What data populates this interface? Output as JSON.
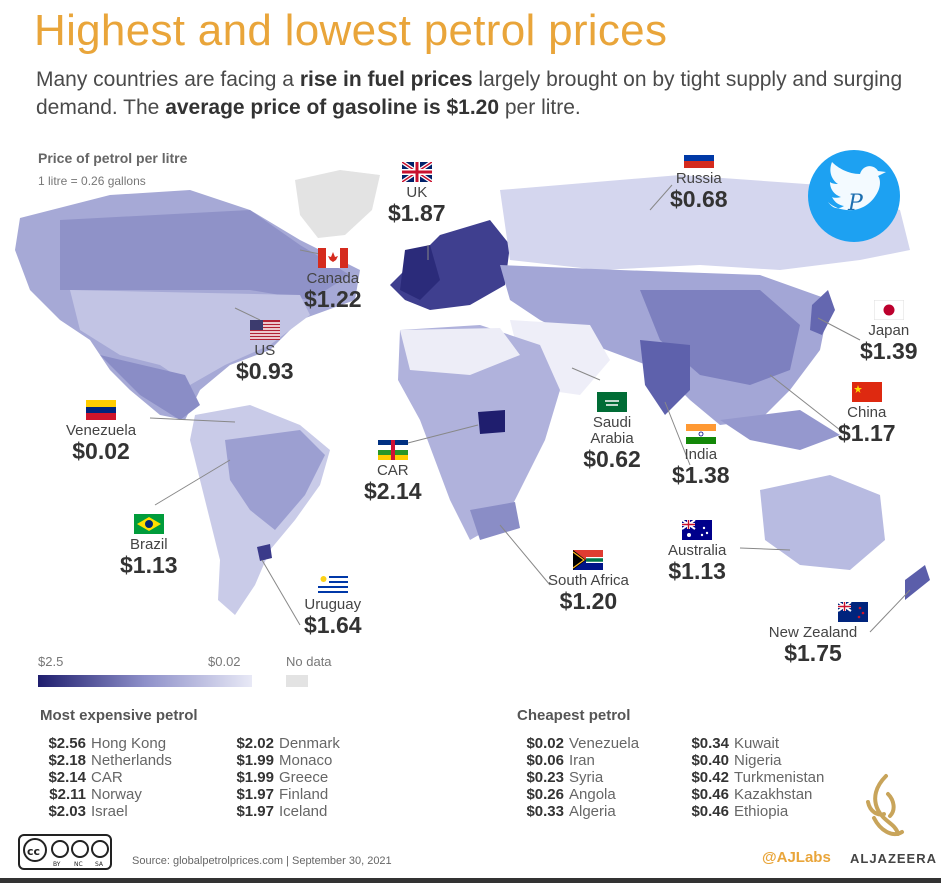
{
  "title": "Highest and lowest petrol prices",
  "subtitle": {
    "part1": "Many countries are facing a ",
    "bold1": "rise in fuel prices",
    "part2": " largely brought on by tight supply and surging demand. The ",
    "bold2": "average price of gasoline is $1.20",
    "part3": " per litre."
  },
  "map_header": {
    "title": "Price of petrol per litre",
    "note": "1 litre = 0.26 gallons"
  },
  "callouts": [
    {
      "country": "UK",
      "price": "$1.87"
    },
    {
      "country": "Russia",
      "price": "$0.68"
    },
    {
      "country": "Canada",
      "price": "$1.22"
    },
    {
      "country": "US",
      "price": "$0.93"
    },
    {
      "country": "Japan",
      "price": "$1.39"
    },
    {
      "country": "China",
      "price": "$1.17"
    },
    {
      "country": "Venezuela",
      "price": "$0.02"
    },
    {
      "country": "Saudi Arabia",
      "price": "$0.62"
    },
    {
      "country": "India",
      "price": "$1.38"
    },
    {
      "country": "CAR",
      "price": "$2.14"
    },
    {
      "country": "Brazil",
      "price": "$1.13"
    },
    {
      "country": "Australia",
      "price": "$1.13"
    },
    {
      "country": "South Africa",
      "price": "$1.20"
    },
    {
      "country": "Uruguay",
      "price": "$1.64"
    },
    {
      "country": "New Zealand",
      "price": "$1.75"
    }
  ],
  "legend": {
    "max_label": "$2.5",
    "min_label": "$0.02",
    "nodata_label": "No data",
    "high_color": "#1f1e6e",
    "low_color": "#e8e9f6",
    "nodata_color": "#e3e3e3"
  },
  "most_expensive": {
    "title": "Most expensive petrol",
    "items": [
      {
        "value": "$2.56",
        "country": "Hong Kong"
      },
      {
        "value": "$2.18",
        "country": "Netherlands"
      },
      {
        "value": "$2.14",
        "country": "CAR"
      },
      {
        "value": "$2.11",
        "country": "Norway"
      },
      {
        "value": "$2.03",
        "country": "Israel"
      },
      {
        "value": "$2.02",
        "country": "Denmark"
      },
      {
        "value": "$1.99",
        "country": "Monaco"
      },
      {
        "value": "$1.99",
        "country": "Greece"
      },
      {
        "value": "$1.97",
        "country": "Finland"
      },
      {
        "value": "$1.97",
        "country": "Iceland"
      }
    ]
  },
  "cheapest": {
    "title": "Cheapest petrol",
    "items": [
      {
        "value": "$0.02",
        "country": "Venezuela"
      },
      {
        "value": "$0.06",
        "country": "Iran"
      },
      {
        "value": "$0.23",
        "country": "Syria"
      },
      {
        "value": "$0.26",
        "country": "Angola"
      },
      {
        "value": "$0.33",
        "country": "Algeria"
      },
      {
        "value": "$0.34",
        "country": "Kuwait"
      },
      {
        "value": "$0.40",
        "country": "Nigeria"
      },
      {
        "value": "$0.42",
        "country": "Turkmenistan"
      },
      {
        "value": "$0.46",
        "country": "Kazakhstan"
      },
      {
        "value": "$0.46",
        "country": "Ethiopia"
      }
    ]
  },
  "footer": {
    "license": [
      "BY",
      "NC",
      "SA"
    ],
    "source": "Source: globalpetrolprices.com | September 30, 2021",
    "handle": "@AJLabs",
    "brand": "ALJAZEERA"
  },
  "accent_color": "#e9a53a"
}
